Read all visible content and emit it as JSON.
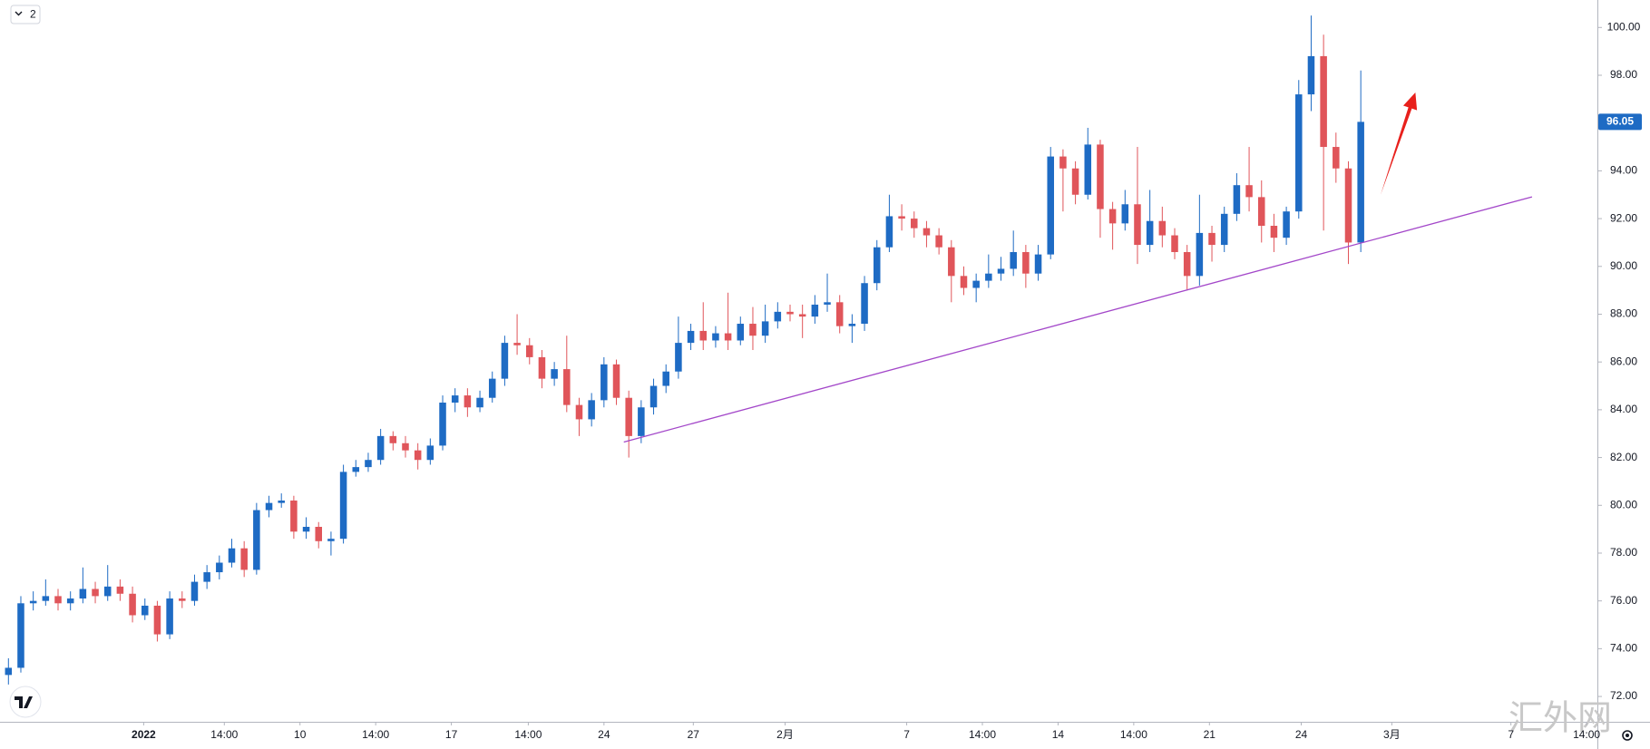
{
  "chart_data": {
    "type": "candlestick",
    "up_color": "#1e6bc4",
    "down_color": "#e0555a",
    "xlim": [
      -0.68,
      128.07
    ],
    "xticks": [
      {
        "value": 10.9,
        "label": "2022"
      },
      {
        "value": 17.4,
        "label": "14:00"
      },
      {
        "value": 23.5,
        "label": "10"
      },
      {
        "value": 29.6,
        "label": "14:00"
      },
      {
        "value": 35.7,
        "label": "17"
      },
      {
        "value": 41.9,
        "label": "14:00"
      },
      {
        "value": 48.0,
        "label": "24"
      },
      {
        "value": 55.2,
        "label": "27"
      },
      {
        "value": 62.6,
        "label": "2月"
      },
      {
        "value": 72.4,
        "label": "7"
      },
      {
        "value": 78.5,
        "label": "14:00"
      },
      {
        "value": 84.6,
        "label": "14"
      },
      {
        "value": 90.7,
        "label": "14:00"
      },
      {
        "value": 96.8,
        "label": "21"
      },
      {
        "value": 104.2,
        "label": "24"
      },
      {
        "value": 111.5,
        "label": "3月"
      },
      {
        "value": 121.1,
        "label": "7"
      },
      {
        "value": 127.2,
        "label": "14:00"
      }
    ],
    "ylim": [
      70.94,
      101.15
    ],
    "yticks": [
      {
        "value": 72,
        "label": "72.00"
      },
      {
        "value": 74,
        "label": "74.00"
      },
      {
        "value": 76,
        "label": "76.00"
      },
      {
        "value": 78,
        "label": "78.00"
      },
      {
        "value": 80,
        "label": "80.00"
      },
      {
        "value": 82,
        "label": "82.00"
      },
      {
        "value": 84,
        "label": "84.00"
      },
      {
        "value": 86,
        "label": "86.00"
      },
      {
        "value": 88,
        "label": "88.00"
      },
      {
        "value": 90,
        "label": "90.00"
      },
      {
        "value": 92,
        "label": "92.00"
      },
      {
        "value": 94,
        "label": "94.00"
      },
      {
        "value": 96,
        "label": "96.00"
      },
      {
        "value": 98,
        "label": "98.00"
      },
      {
        "value": 100,
        "label": "100.00"
      }
    ],
    "open": [
      72.9,
      73.2,
      75.9,
      76.0,
      76.2,
      75.9,
      76.1,
      76.5,
      76.2,
      76.6,
      76.3,
      75.4,
      75.8,
      74.6,
      76.1,
      76.0,
      76.8,
      77.2,
      77.6,
      78.2,
      77.3,
      79.8,
      80.1,
      80.2,
      78.9,
      79.1,
      78.5,
      78.6,
      81.4,
      81.6,
      81.9,
      82.9,
      82.6,
      82.3,
      81.9,
      82.5,
      84.3,
      84.6,
      84.1,
      84.5,
      85.3,
      86.8,
      86.7,
      86.2,
      85.3,
      85.7,
      84.2,
      83.6,
      84.4,
      85.9,
      84.5,
      82.9,
      84.1,
      85.0,
      85.6,
      86.8,
      87.3,
      86.9,
      87.2,
      86.9,
      87.6,
      87.1,
      87.7,
      88.1,
      88.0,
      87.9,
      88.4,
      88.5,
      87.5,
      87.6,
      89.3,
      90.8,
      92.1,
      92.0,
      91.6,
      91.3,
      90.8,
      89.6,
      89.1,
      89.4,
      89.7,
      89.9,
      90.6,
      89.7,
      90.5,
      94.6,
      94.1,
      93.0,
      95.1,
      92.4,
      91.8,
      92.6,
      90.9,
      91.9,
      91.3,
      90.6,
      89.6,
      91.4,
      90.9,
      92.2,
      93.4,
      92.9,
      91.7,
      91.2,
      92.3,
      97.2,
      98.8,
      95.0,
      94.1,
      91.0
    ],
    "high": [
      73.6,
      76.2,
      76.4,
      76.9,
      76.5,
      76.4,
      77.4,
      76.8,
      77.5,
      76.9,
      76.6,
      76.1,
      76.0,
      76.4,
      76.4,
      77.1,
      77.5,
      77.9,
      78.6,
      78.5,
      80.1,
      80.4,
      80.5,
      80.4,
      79.5,
      79.3,
      78.9,
      81.7,
      81.9,
      82.2,
      83.2,
      83.1,
      82.9,
      82.6,
      82.8,
      84.6,
      84.9,
      84.9,
      84.8,
      85.6,
      87.1,
      88.0,
      87.0,
      86.5,
      86.0,
      87.1,
      84.5,
      84.7,
      86.2,
      86.1,
      84.8,
      84.4,
      85.3,
      85.9,
      87.9,
      87.6,
      88.5,
      87.5,
      88.9,
      87.9,
      88.3,
      88.4,
      88.5,
      88.4,
      88.4,
      88.8,
      89.7,
      88.8,
      88.0,
      89.6,
      91.1,
      93.0,
      92.6,
      92.3,
      91.9,
      91.6,
      91.1,
      90.0,
      89.7,
      90.5,
      90.4,
      91.5,
      90.9,
      90.9,
      95.0,
      94.9,
      94.4,
      95.8,
      95.3,
      92.7,
      93.2,
      95.0,
      93.2,
      92.5,
      91.6,
      90.9,
      93.0,
      91.7,
      92.5,
      93.9,
      95.0,
      93.6,
      92.2,
      92.5,
      97.8,
      100.5,
      99.7,
      95.6,
      94.4,
      98.2
    ],
    "low": [
      72.5,
      73.0,
      75.6,
      75.8,
      75.6,
      75.6,
      75.9,
      75.9,
      76.0,
      76.0,
      75.1,
      75.2,
      74.3,
      74.4,
      75.7,
      75.8,
      76.5,
      76.9,
      77.4,
      77.0,
      77.1,
      79.5,
      79.9,
      78.6,
      78.6,
      78.2,
      77.9,
      78.4,
      81.2,
      81.4,
      81.7,
      82.3,
      82.0,
      81.5,
      81.7,
      82.3,
      83.9,
      83.7,
      83.9,
      84.3,
      85.0,
      86.3,
      85.9,
      84.9,
      85.0,
      83.9,
      82.9,
      83.3,
      84.1,
      84.2,
      82.0,
      82.6,
      83.8,
      84.7,
      85.3,
      86.5,
      86.5,
      86.6,
      86.5,
      86.7,
      86.5,
      86.8,
      87.4,
      87.7,
      87.0,
      87.6,
      88.1,
      87.2,
      86.8,
      87.3,
      89.0,
      90.6,
      91.5,
      91.2,
      90.8,
      90.5,
      88.5,
      88.8,
      88.5,
      89.1,
      89.4,
      89.6,
      89.1,
      89.4,
      90.3,
      92.3,
      92.6,
      92.8,
      91.2,
      90.7,
      91.5,
      90.1,
      90.6,
      90.8,
      90.3,
      89.0,
      89.2,
      90.2,
      90.6,
      91.9,
      92.3,
      91.0,
      90.6,
      90.9,
      92.0,
      96.5,
      91.5,
      93.5,
      90.1,
      90.6
    ],
    "close": [
      73.2,
      75.9,
      76.0,
      76.2,
      75.9,
      76.1,
      76.5,
      76.2,
      76.6,
      76.3,
      75.4,
      75.8,
      74.6,
      76.1,
      76.0,
      76.8,
      77.2,
      77.6,
      78.2,
      77.3,
      79.8,
      80.1,
      80.2,
      78.9,
      79.1,
      78.5,
      78.6,
      81.4,
      81.6,
      81.9,
      82.9,
      82.6,
      82.3,
      81.9,
      82.5,
      84.3,
      84.6,
      84.1,
      84.5,
      85.3,
      86.8,
      86.7,
      86.2,
      85.3,
      85.7,
      84.2,
      83.6,
      84.4,
      85.9,
      84.5,
      82.9,
      84.1,
      85.0,
      85.6,
      86.8,
      87.3,
      86.9,
      87.2,
      86.9,
      87.6,
      87.1,
      87.7,
      88.1,
      88.0,
      87.9,
      88.4,
      88.5,
      87.5,
      87.6,
      89.3,
      90.8,
      92.1,
      92.0,
      91.6,
      91.3,
      90.8,
      89.6,
      89.1,
      89.4,
      89.7,
      89.9,
      90.6,
      89.7,
      90.5,
      94.6,
      94.1,
      93.0,
      95.1,
      92.4,
      91.8,
      92.6,
      90.9,
      91.9,
      91.3,
      90.6,
      89.6,
      91.4,
      90.9,
      92.2,
      93.4,
      92.9,
      91.7,
      91.2,
      92.3,
      97.2,
      98.8,
      95.0,
      94.1,
      91.0,
      96.05
    ],
    "trendline": {
      "x": [
        49.6,
        122.8
      ],
      "y": [
        82.65,
        92.91
      ],
      "color": "#a347c9"
    },
    "arrow": {
      "x": [
        110.6,
        113.4
      ],
      "y": [
        93.0,
        97.28
      ],
      "color": "#e8201c"
    },
    "legend_button": "2",
    "watermark": "汇外网"
  }
}
